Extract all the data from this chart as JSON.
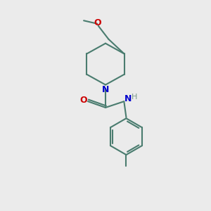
{
  "background_color": "#ebebeb",
  "bond_color": "#4a7c6f",
  "N_color": "#0000cc",
  "O_color": "#cc0000",
  "H_color": "#7a9a8a",
  "line_width": 1.5,
  "figsize": [
    3.0,
    3.0
  ],
  "dpi": 100,
  "xlim": [
    0,
    10
  ],
  "ylim": [
    0,
    10
  ]
}
